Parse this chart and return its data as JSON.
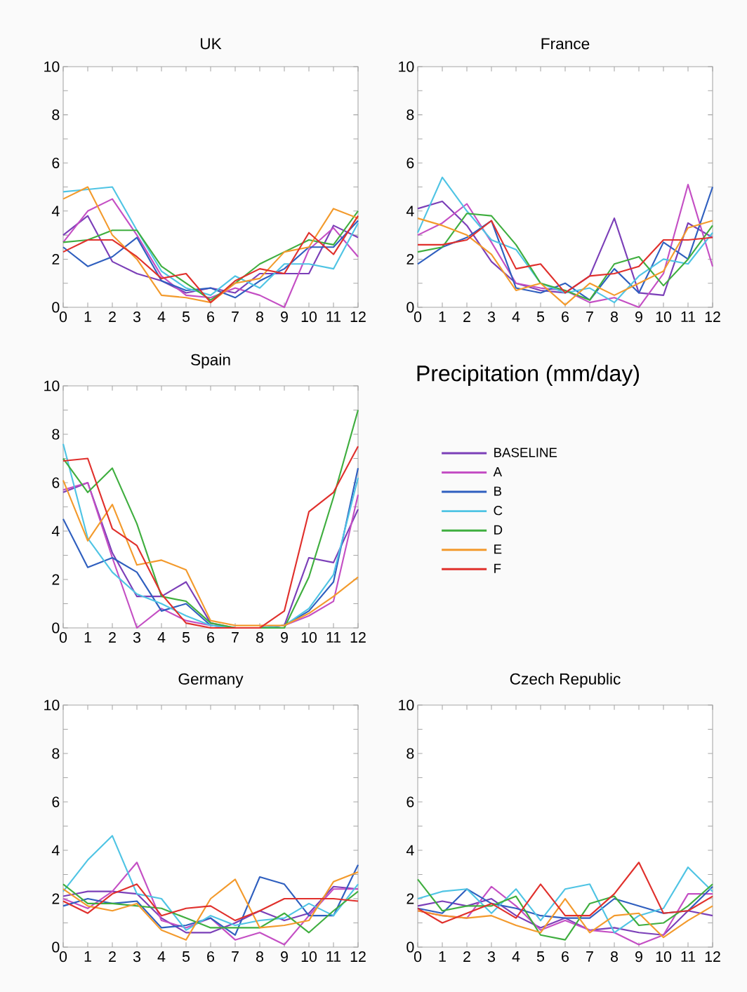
{
  "chart_data": [
    {
      "type": "line",
      "title": "UK",
      "x": [
        0,
        1,
        2,
        3,
        4,
        5,
        6,
        7,
        8,
        9,
        10,
        11,
        12
      ],
      "xlim": [
        0,
        12
      ],
      "ylim": [
        0,
        10
      ],
      "xticks": [
        0,
        1,
        2,
        3,
        4,
        5,
        6,
        7,
        8,
        9,
        10,
        11,
        12
      ],
      "yticks": [
        0,
        2,
        4,
        6,
        8,
        10
      ],
      "series": [
        {
          "color": "#7b3fb8",
          "values": [
            3.0,
            3.8,
            1.9,
            1.4,
            1.1,
            0.6,
            0.8,
            0.6,
            1.4,
            1.4,
            1.4,
            3.4,
            2.9
          ]
        },
        {
          "color": "#c44fc4",
          "values": [
            2.7,
            4.0,
            4.5,
            3.0,
            1.3,
            0.5,
            0.4,
            0.8,
            0.5,
            0.0,
            2.4,
            3.3,
            2.1
          ]
        },
        {
          "color": "#2f5fbf",
          "values": [
            2.5,
            1.7,
            2.1,
            2.9,
            1.1,
            0.7,
            0.8,
            0.4,
            1.1,
            1.6,
            2.5,
            2.5,
            3.6
          ]
        },
        {
          "color": "#4fc4e4",
          "values": [
            4.8,
            4.9,
            5.0,
            3.2,
            1.5,
            0.8,
            0.5,
            1.3,
            0.8,
            1.8,
            1.8,
            1.6,
            3.5
          ]
        },
        {
          "color": "#3fae3f",
          "values": [
            2.7,
            2.8,
            3.2,
            3.2,
            1.7,
            1.0,
            0.3,
            1.0,
            1.8,
            2.3,
            2.8,
            2.6,
            4.0
          ]
        },
        {
          "color": "#f39a2c",
          "values": [
            4.5,
            5.0,
            3.0,
            2.0,
            0.5,
            0.4,
            0.2,
            1.0,
            1.2,
            2.3,
            2.5,
            4.1,
            3.7
          ]
        },
        {
          "color": "#e0302c",
          "values": [
            2.3,
            2.8,
            2.8,
            2.1,
            1.2,
            1.4,
            0.2,
            1.1,
            1.6,
            1.4,
            3.1,
            2.2,
            3.8
          ]
        }
      ]
    },
    {
      "type": "line",
      "title": "France",
      "x": [
        0,
        1,
        2,
        3,
        4,
        5,
        6,
        7,
        8,
        9,
        10,
        11,
        12
      ],
      "xlim": [
        0,
        12
      ],
      "ylim": [
        0,
        10
      ],
      "xticks": [
        0,
        1,
        2,
        3,
        4,
        5,
        6,
        7,
        8,
        9,
        10,
        11,
        12
      ],
      "yticks": [
        0,
        2,
        4,
        6,
        8,
        10
      ],
      "series": [
        {
          "color": "#7b3fb8",
          "values": [
            4.1,
            4.4,
            3.4,
            1.9,
            1.0,
            0.7,
            0.6,
            1.3,
            3.7,
            0.6,
            0.5,
            3.5,
            2.9
          ]
        },
        {
          "color": "#c44fc4",
          "values": [
            3.0,
            3.5,
            4.3,
            2.7,
            1.0,
            0.8,
            0.7,
            0.2,
            0.4,
            0.0,
            1.4,
            5.1,
            1.7
          ]
        },
        {
          "color": "#2f5fbf",
          "values": [
            1.8,
            2.5,
            2.9,
            3.6,
            0.8,
            0.6,
            1.0,
            0.3,
            1.6,
            0.6,
            2.7,
            2.0,
            5.0
          ]
        },
        {
          "color": "#4fc4e4",
          "values": [
            3.1,
            5.4,
            4.0,
            2.8,
            2.4,
            1.0,
            0.6,
            0.8,
            0.2,
            1.3,
            2.0,
            1.8,
            3.1
          ]
        },
        {
          "color": "#3fae3f",
          "values": [
            2.3,
            2.5,
            3.9,
            3.8,
            2.6,
            1.0,
            0.7,
            0.3,
            1.8,
            2.1,
            0.9,
            2.0,
            3.4
          ]
        },
        {
          "color": "#f39a2c",
          "values": [
            3.7,
            3.4,
            3.0,
            2.2,
            0.7,
            1.0,
            0.1,
            1.0,
            0.5,
            1.0,
            1.5,
            3.3,
            3.6
          ]
        },
        {
          "color": "#e0302c",
          "values": [
            2.6,
            2.6,
            2.8,
            3.6,
            1.6,
            1.8,
            0.6,
            1.3,
            1.4,
            1.7,
            2.8,
            2.8,
            2.9
          ]
        }
      ]
    },
    {
      "type": "line",
      "title": "Spain",
      "x": [
        0,
        1,
        2,
        3,
        4,
        5,
        6,
        7,
        8,
        9,
        10,
        11,
        12
      ],
      "xlim": [
        0,
        12
      ],
      "ylim": [
        0,
        10
      ],
      "xticks": [
        0,
        1,
        2,
        3,
        4,
        5,
        6,
        7,
        8,
        9,
        10,
        11,
        12
      ],
      "yticks": [
        0,
        2,
        4,
        6,
        8,
        10
      ],
      "legend": "right",
      "series": [
        {
          "name": "BASELINE",
          "color": "#7b3fb8",
          "values": [
            5.6,
            6.0,
            3.1,
            1.3,
            1.3,
            1.9,
            0.2,
            0.0,
            0.0,
            0.1,
            2.9,
            2.7,
            4.9
          ]
        },
        {
          "name": "A",
          "color": "#c44fc4",
          "values": [
            5.7,
            6.0,
            2.9,
            0.0,
            0.8,
            0.3,
            0.1,
            0.0,
            0.0,
            0.1,
            0.5,
            1.1,
            5.5
          ]
        },
        {
          "name": "B",
          "color": "#2f5fbf",
          "values": [
            4.5,
            2.5,
            2.9,
            2.3,
            0.7,
            1.0,
            0.1,
            0.0,
            0.0,
            0.1,
            0.7,
            1.9,
            6.6
          ]
        },
        {
          "name": "C",
          "color": "#4fc4e4",
          "values": [
            7.6,
            3.7,
            2.3,
            1.4,
            1.0,
            0.5,
            0.1,
            0.0,
            0.0,
            0.1,
            0.8,
            2.2,
            6.2
          ]
        },
        {
          "name": "D",
          "color": "#3fae3f",
          "values": [
            7.0,
            5.6,
            6.6,
            4.3,
            1.3,
            1.1,
            0.2,
            0.0,
            0.0,
            0.0,
            2.1,
            5.4,
            9.0
          ]
        },
        {
          "name": "E",
          "color": "#f39a2c",
          "values": [
            6.1,
            3.6,
            5.1,
            2.6,
            2.8,
            2.4,
            0.3,
            0.1,
            0.1,
            0.1,
            0.6,
            1.3,
            2.1
          ]
        },
        {
          "name": "F",
          "color": "#e0302c",
          "values": [
            6.9,
            7.0,
            4.1,
            3.4,
            1.4,
            0.2,
            0.0,
            0.0,
            0.0,
            0.7,
            4.8,
            5.6,
            7.5
          ]
        }
      ]
    },
    {
      "type": "line",
      "title": "Germany",
      "x": [
        0,
        1,
        2,
        3,
        4,
        5,
        6,
        7,
        8,
        9,
        10,
        11,
        12
      ],
      "xlim": [
        0,
        12
      ],
      "ylim": [
        0,
        10
      ],
      "xticks": [
        0,
        1,
        2,
        3,
        4,
        5,
        6,
        7,
        8,
        9,
        10,
        11,
        12
      ],
      "yticks": [
        0,
        2,
        4,
        6,
        8,
        10
      ],
      "series": [
        {
          "color": "#7b3fb8",
          "values": [
            2.1,
            2.3,
            2.3,
            2.2,
            1.2,
            0.6,
            0.6,
            1.0,
            1.5,
            1.1,
            1.4,
            2.5,
            2.4
          ]
        },
        {
          "color": "#c44fc4",
          "values": [
            2.0,
            1.6,
            2.3,
            3.5,
            1.1,
            0.8,
            1.2,
            0.3,
            0.6,
            0.1,
            1.3,
            2.4,
            2.4
          ]
        },
        {
          "color": "#2f5fbf",
          "values": [
            1.7,
            2.0,
            1.8,
            1.9,
            0.8,
            0.9,
            1.2,
            0.5,
            2.9,
            2.6,
            1.3,
            1.3,
            3.4
          ]
        },
        {
          "color": "#4fc4e4",
          "values": [
            2.3,
            3.6,
            4.6,
            2.2,
            2.0,
            0.7,
            1.3,
            0.9,
            1.1,
            1.2,
            1.8,
            1.3,
            2.6
          ]
        },
        {
          "color": "#3fae3f",
          "values": [
            2.6,
            1.8,
            1.8,
            1.7,
            1.6,
            1.2,
            0.8,
            0.8,
            0.8,
            1.4,
            0.6,
            1.5,
            2.3
          ]
        },
        {
          "color": "#f39a2c",
          "values": [
            2.4,
            1.7,
            1.5,
            1.8,
            0.7,
            0.3,
            2.0,
            2.8,
            0.8,
            0.9,
            1.1,
            2.7,
            3.1
          ]
        },
        {
          "color": "#e0302c",
          "values": [
            1.9,
            1.4,
            2.2,
            2.6,
            1.3,
            1.6,
            1.7,
            1.1,
            1.5,
            2.0,
            2.0,
            2.0,
            1.9
          ]
        }
      ]
    },
    {
      "type": "line",
      "title": "Czech Republic",
      "x": [
        0,
        1,
        2,
        3,
        4,
        5,
        6,
        7,
        8,
        9,
        10,
        11,
        12
      ],
      "xlim": [
        0,
        12
      ],
      "ylim": [
        0,
        10
      ],
      "xticks": [
        0,
        1,
        2,
        3,
        4,
        5,
        6,
        7,
        8,
        9,
        10,
        11,
        12
      ],
      "yticks": [
        0,
        2,
        4,
        6,
        8,
        10
      ],
      "series": [
        {
          "color": "#7b3fb8",
          "values": [
            1.7,
            1.9,
            1.7,
            2.0,
            1.3,
            0.8,
            1.2,
            0.7,
            0.8,
            0.6,
            0.5,
            1.5,
            1.3
          ]
        },
        {
          "color": "#c44fc4",
          "values": [
            1.5,
            1.3,
            1.2,
            2.5,
            1.7,
            0.7,
            1.1,
            0.7,
            0.6,
            0.1,
            0.5,
            2.2,
            2.2
          ]
        },
        {
          "color": "#2f5fbf",
          "values": [
            1.6,
            1.4,
            2.4,
            1.8,
            1.6,
            1.3,
            1.2,
            1.2,
            2.0,
            1.7,
            1.4,
            1.5,
            2.5
          ]
        },
        {
          "color": "#4fc4e4",
          "values": [
            2.0,
            2.3,
            2.4,
            1.4,
            2.4,
            1.1,
            2.4,
            2.6,
            0.6,
            1.3,
            1.6,
            3.3,
            2.3
          ]
        },
        {
          "color": "#3fae3f",
          "values": [
            2.8,
            1.5,
            1.7,
            1.7,
            2.1,
            0.5,
            0.3,
            1.8,
            2.1,
            0.9,
            1.0,
            1.7,
            2.6
          ]
        },
        {
          "color": "#f39a2c",
          "values": [
            1.5,
            1.3,
            1.2,
            1.3,
            0.9,
            0.6,
            2.0,
            0.6,
            1.3,
            1.4,
            0.4,
            1.1,
            1.7
          ]
        },
        {
          "color": "#e0302c",
          "values": [
            1.6,
            1.0,
            1.4,
            1.8,
            1.2,
            2.6,
            1.3,
            1.3,
            2.2,
            3.5,
            1.4,
            1.5,
            2.1
          ]
        }
      ]
    },
    {
      "type": "other",
      "title": "Precipitation (mm/day)"
    }
  ]
}
